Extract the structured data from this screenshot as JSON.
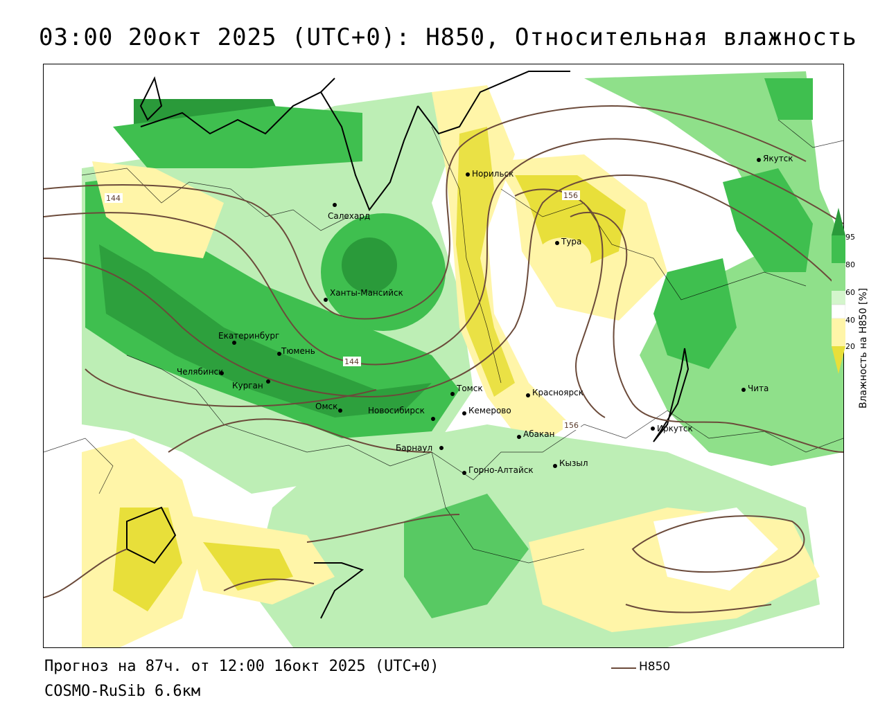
{
  "title": "03:00 20окт 2025 (UTC+0): H850, Относительная влажность",
  "footer": {
    "forecast": "Прогноз на 87ч. от 12:00 16окт 2025 (UTC+0)",
    "model": "COSMO-RuSib 6.6км",
    "legend_label": "H850"
  },
  "colorbar": {
    "title": "Влажность на H850 [%]",
    "ticks": [
      "95",
      "80",
      "60",
      "40",
      "20"
    ],
    "colors": {
      "c95": "#2a9a3a",
      "c80": "#3fbf4f",
      "c60": "#8fe08a",
      "c50": "#d4f5cc",
      "c40": "#ffffff",
      "c30": "#fff5a8",
      "c20": "#e8df3a"
    }
  },
  "contour_labels": [
    "144",
    "144",
    "156",
    "156"
  ],
  "cities": [
    "Норильск",
    "Салехард",
    "Тура",
    "Якутск",
    "Ханты-Мансийск",
    "Екатеринбург",
    "Тюмень",
    "Челябинск",
    "Курган",
    "Омск",
    "Новосибирск",
    "Томск",
    "Кемерово",
    "Красноярск",
    "Барнаул",
    "Абакан",
    "Кызыл",
    "Горно-Алтайск",
    "Иркутск",
    "Чита"
  ]
}
